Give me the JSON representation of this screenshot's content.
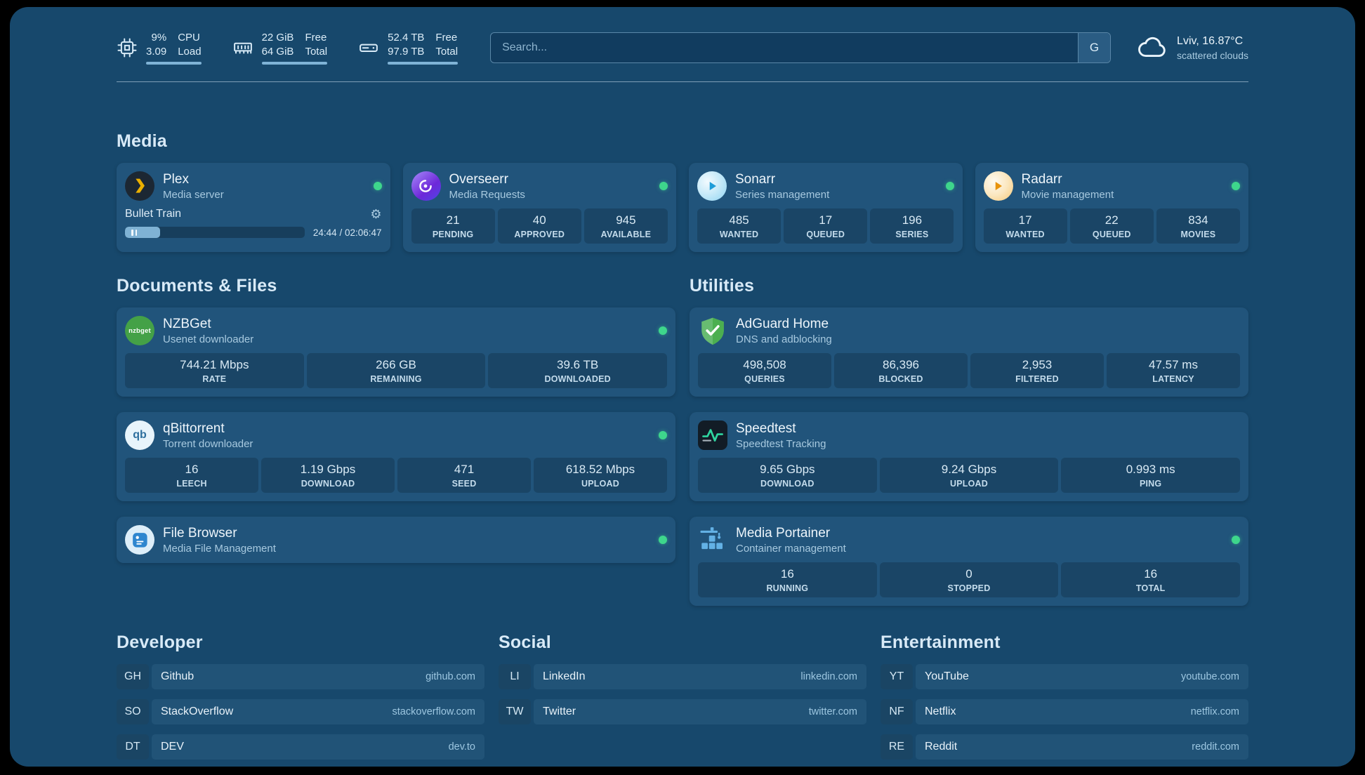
{
  "colors": {
    "background": "#17486C",
    "card": "#21547B",
    "stat_tile": "#1A4566",
    "status_green": "#3ED68C",
    "progress_fill": "#7FB2D4"
  },
  "icons": {
    "gear": "⚙"
  },
  "topbar": {
    "system": {
      "cpu": {
        "icon": "cpu-icon",
        "values": [
          "9%",
          "3.09"
        ],
        "labels": [
          "CPU",
          "Load"
        ]
      },
      "memory": {
        "icon": "memory-icon",
        "values": [
          "22 GiB",
          "64 GiB"
        ],
        "labels": [
          "Free",
          "Total"
        ]
      },
      "disk": {
        "icon": "disk-icon",
        "values": [
          "52.4 TB",
          "97.9 TB"
        ],
        "labels": [
          "Free",
          "Total"
        ]
      }
    },
    "search": {
      "placeholder": "Search...",
      "button_label": "G"
    },
    "weather": {
      "icon": "cloud-icon",
      "location": "Lviv, 16.87°C",
      "condition": "scattered clouds"
    }
  },
  "sections": {
    "media": {
      "title": "Media"
    },
    "documents": {
      "title": "Documents & Files"
    },
    "utilities": {
      "title": "Utilities"
    },
    "developer": {
      "title": "Developer"
    },
    "social": {
      "title": "Social"
    },
    "entertainment": {
      "title": "Entertainment"
    }
  },
  "services": {
    "plex": {
      "icon": "plex-icon",
      "title": "Plex",
      "subtitle": "Media server",
      "online": true,
      "now_playing": {
        "title": "Bullet Train",
        "time": "24:44 / 02:06:47",
        "progress_percent": 19.5
      }
    },
    "overseerr": {
      "icon": "overseerr-icon",
      "title": "Overseerr",
      "subtitle": "Media Requests",
      "online": true,
      "stats": [
        {
          "value": "21",
          "label": "PENDING"
        },
        {
          "value": "40",
          "label": "APPROVED"
        },
        {
          "value": "945",
          "label": "AVAILABLE"
        }
      ]
    },
    "sonarr": {
      "icon": "sonarr-icon",
      "title": "Sonarr",
      "subtitle": "Series management",
      "online": true,
      "stats": [
        {
          "value": "485",
          "label": "WANTED"
        },
        {
          "value": "17",
          "label": "QUEUED"
        },
        {
          "value": "196",
          "label": "SERIES"
        }
      ]
    },
    "radarr": {
      "icon": "radarr-icon",
      "title": "Radarr",
      "subtitle": "Movie management",
      "online": true,
      "stats": [
        {
          "value": "17",
          "label": "WANTED"
        },
        {
          "value": "22",
          "label": "QUEUED"
        },
        {
          "value": "834",
          "label": "MOVIES"
        }
      ]
    },
    "nzbget": {
      "icon": "nzbget-icon",
      "icon_text": "nzbget",
      "title": "NZBGet",
      "subtitle": "Usenet downloader",
      "online": true,
      "stats": [
        {
          "value": "744.21 Mbps",
          "label": "RATE"
        },
        {
          "value": "266 GB",
          "label": "REMAINING"
        },
        {
          "value": "39.6 TB",
          "label": "DOWNLOADED"
        }
      ]
    },
    "qbittorrent": {
      "icon": "qbittorrent-icon",
      "icon_text": "qb",
      "title": "qBittorrent",
      "subtitle": "Torrent downloader",
      "online": true,
      "stats": [
        {
          "value": "16",
          "label": "LEECH"
        },
        {
          "value": "1.19 Gbps",
          "label": "DOWNLOAD"
        },
        {
          "value": "471",
          "label": "SEED"
        },
        {
          "value": "618.52 Mbps",
          "label": "UPLOAD"
        }
      ]
    },
    "filebrowser": {
      "icon": "filebrowser-icon",
      "title": "File Browser",
      "subtitle": "Media File Management",
      "online": true
    },
    "adguard": {
      "icon": "adguard-icon",
      "title": "AdGuard Home",
      "subtitle": "DNS and adblocking",
      "stats": [
        {
          "value": "498,508",
          "label": "QUERIES"
        },
        {
          "value": "86,396",
          "label": "BLOCKED"
        },
        {
          "value": "2,953",
          "label": "FILTERED"
        },
        {
          "value": "47.57 ms",
          "label": "LATENCY"
        }
      ]
    },
    "speedtest": {
      "icon": "speedtest-icon",
      "title": "Speedtest",
      "subtitle": "Speedtest Tracking",
      "stats": [
        {
          "value": "9.65 Gbps",
          "label": "DOWNLOAD"
        },
        {
          "value": "9.24 Gbps",
          "label": "UPLOAD"
        },
        {
          "value": "0.993 ms",
          "label": "PING"
        }
      ]
    },
    "portainer": {
      "icon": "portainer-icon",
      "title": "Media Portainer",
      "subtitle": "Container management",
      "online": true,
      "stats": [
        {
          "value": "16",
          "label": "RUNNING"
        },
        {
          "value": "0",
          "label": "STOPPED"
        },
        {
          "value": "16",
          "label": "TOTAL"
        }
      ]
    }
  },
  "bookmarks": {
    "developer": [
      {
        "abbr": "GH",
        "name": "Github",
        "url": "github.com"
      },
      {
        "abbr": "SO",
        "name": "StackOverflow",
        "url": "stackoverflow.com"
      },
      {
        "abbr": "DT",
        "name": "DEV",
        "url": "dev.to"
      }
    ],
    "social": [
      {
        "abbr": "LI",
        "name": "LinkedIn",
        "url": "linkedin.com"
      },
      {
        "abbr": "TW",
        "name": "Twitter",
        "url": "twitter.com"
      }
    ],
    "entertainment": [
      {
        "abbr": "YT",
        "name": "YouTube",
        "url": "youtube.com"
      },
      {
        "abbr": "NF",
        "name": "Netflix",
        "url": "netflix.com"
      },
      {
        "abbr": "RE",
        "name": "Reddit",
        "url": "reddit.com"
      }
    ]
  }
}
